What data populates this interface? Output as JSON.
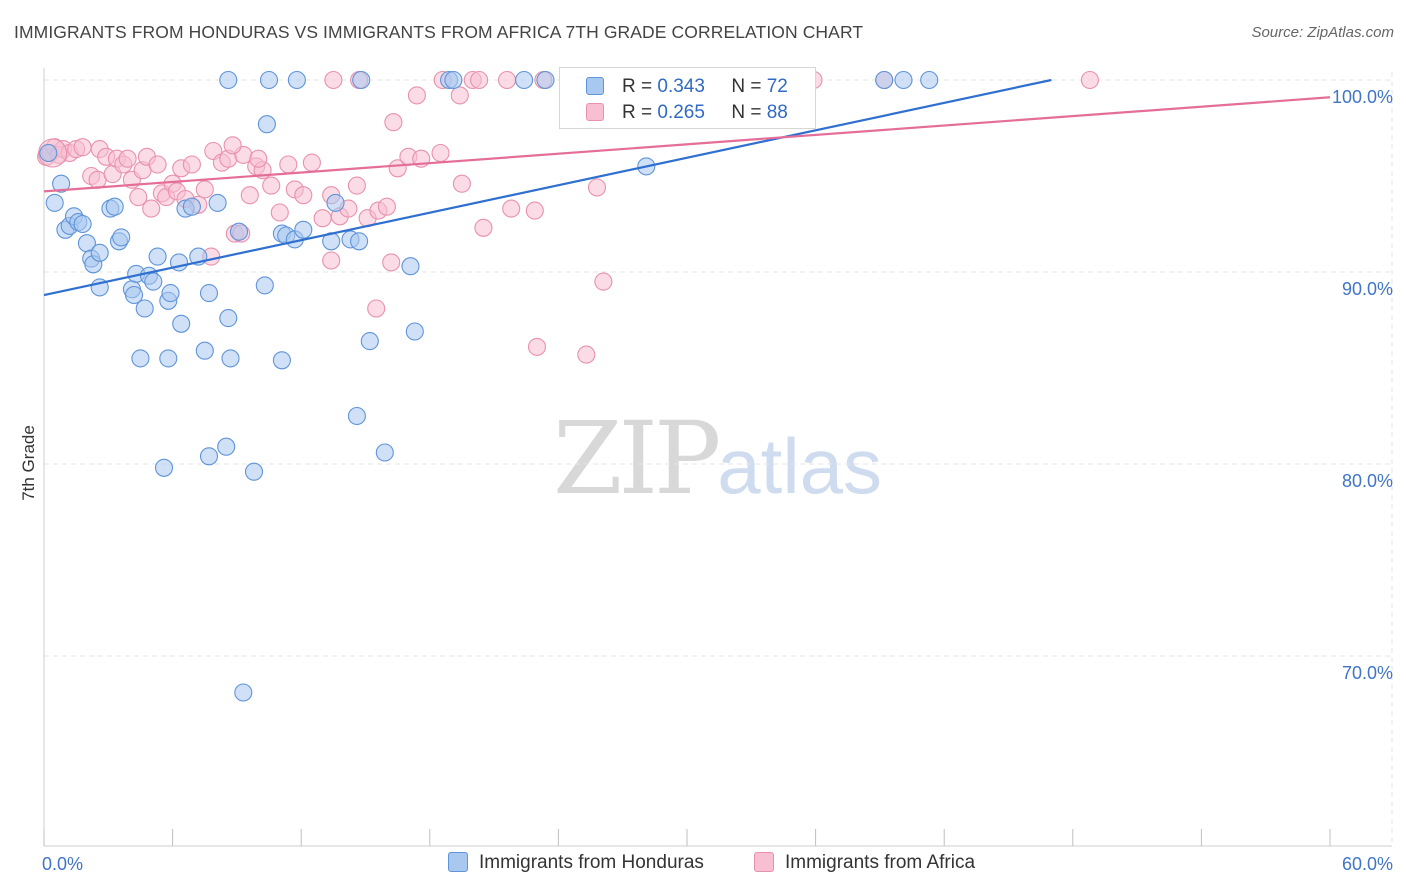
{
  "title": "IMMIGRANTS FROM HONDURAS VS IMMIGRANTS FROM AFRICA 7TH GRADE CORRELATION CHART",
  "source": "Source: ZipAtlas.com",
  "watermark": {
    "zip": "ZIP",
    "atlas": "atlas"
  },
  "colors": {
    "honduras_fill": "#a9c8f0",
    "honduras_stroke": "#5f94d8",
    "honduras_line": "#2f6fd0",
    "africa_fill": "#f7bfd1",
    "africa_stroke": "#e891ad",
    "africa_line": "#e46e97",
    "tick_label": "#3f74c8",
    "grid": "#e6e6e6"
  },
  "legend": {
    "honduras": {
      "r_label": "R =",
      "r_value": "0.343",
      "n_label": "N =",
      "n_value": "72",
      "name": "Immigrants from Honduras"
    },
    "africa": {
      "r_label": "R =",
      "r_value": "0.265",
      "n_label": "N =",
      "n_value": "88",
      "name": "Immigrants from Africa"
    }
  },
  "chart_data": {
    "type": "scatter",
    "title": "IMMIGRANTS FROM HONDURAS VS IMMIGRANTS FROM AFRICA 7TH GRADE CORRELATION CHART",
    "xlabel": "",
    "ylabel": "7th Grade",
    "xlim": [
      0,
      60
    ],
    "ylim": [
      60,
      100.6
    ],
    "x_tick_labels": [
      "0.0%",
      "60.0%"
    ],
    "y_ticks": [
      {
        "value": 100,
        "label": "100.0%"
      },
      {
        "value": 90,
        "label": "90.0%"
      },
      {
        "value": 80,
        "label": "80.0%"
      },
      {
        "value": 70,
        "label": "70.0%"
      }
    ],
    "series": [
      {
        "name": "Immigrants from Honduras",
        "trend": {
          "x0": 0,
          "y0": 88.8,
          "x1": 47,
          "y1": 100
        },
        "points": [
          [
            0.2,
            96.2
          ],
          [
            0.5,
            93.6
          ],
          [
            0.8,
            94.6
          ],
          [
            1.0,
            92.2
          ],
          [
            1.2,
            92.4
          ],
          [
            1.4,
            92.9
          ],
          [
            1.6,
            92.6
          ],
          [
            1.8,
            92.5
          ],
          [
            2.0,
            91.5
          ],
          [
            2.2,
            90.7
          ],
          [
            2.3,
            90.4
          ],
          [
            2.6,
            91.0
          ],
          [
            2.6,
            89.2
          ],
          [
            3.1,
            93.3
          ],
          [
            3.3,
            93.4
          ],
          [
            3.5,
            91.6
          ],
          [
            3.6,
            91.8
          ],
          [
            4.1,
            89.1
          ],
          [
            4.2,
            88.8
          ],
          [
            4.3,
            89.9
          ],
          [
            4.7,
            88.1
          ],
          [
            4.9,
            89.8
          ],
          [
            5.1,
            89.5
          ],
          [
            5.3,
            90.8
          ],
          [
            5.8,
            88.5
          ],
          [
            5.9,
            88.9
          ],
          [
            6.3,
            90.5
          ],
          [
            6.4,
            87.3
          ],
          [
            6.6,
            93.3
          ],
          [
            6.9,
            93.4
          ],
          [
            7.2,
            90.8
          ],
          [
            7.7,
            88.9
          ],
          [
            8.1,
            93.6
          ],
          [
            8.6,
            87.6
          ],
          [
            9.1,
            92.1
          ],
          [
            10.3,
            89.3
          ],
          [
            10.4,
            97.7
          ],
          [
            11.1,
            92.0
          ],
          [
            11.3,
            91.9
          ],
          [
            11.7,
            91.7
          ],
          [
            12.1,
            92.2
          ],
          [
            13.4,
            91.6
          ],
          [
            13.6,
            93.6
          ],
          [
            14.3,
            91.7
          ],
          [
            14.7,
            91.6
          ],
          [
            17.1,
            90.3
          ],
          [
            17.3,
            86.9
          ],
          [
            15.2,
            86.4
          ],
          [
            4.5,
            85.5
          ],
          [
            5.8,
            85.5
          ],
          [
            7.5,
            85.9
          ],
          [
            8.7,
            85.5
          ],
          [
            11.1,
            85.4
          ],
          [
            14.6,
            82.5
          ],
          [
            15.9,
            80.6
          ],
          [
            5.6,
            79.8
          ],
          [
            7.7,
            80.4
          ],
          [
            8.5,
            80.9
          ],
          [
            9.8,
            79.6
          ],
          [
            9.3,
            68.1
          ],
          [
            8.6,
            100
          ],
          [
            10.5,
            100
          ],
          [
            11.8,
            100
          ],
          [
            14.8,
            100
          ],
          [
            18.9,
            100
          ],
          [
            23.4,
            100
          ],
          [
            28.1,
            95.5
          ],
          [
            39.2,
            100
          ],
          [
            40.1,
            100
          ],
          [
            41.3,
            100
          ],
          [
            19.1,
            100
          ],
          [
            22.4,
            100
          ]
        ]
      },
      {
        "name": "Immigrants from Africa",
        "trend": {
          "x0": 0,
          "y0": 94.2,
          "x1": 60,
          "y1": 99.1
        },
        "points": [
          [
            0.1,
            96.0
          ],
          [
            0.3,
            96.2
          ],
          [
            0.5,
            96.5
          ],
          [
            0.7,
            96.1
          ],
          [
            0.9,
            96.4
          ],
          [
            1.2,
            96.2
          ],
          [
            1.5,
            96.4
          ],
          [
            1.8,
            96.5
          ],
          [
            2.2,
            95.0
          ],
          [
            2.5,
            94.8
          ],
          [
            2.6,
            96.4
          ],
          [
            2.9,
            96.0
          ],
          [
            3.2,
            95.1
          ],
          [
            3.4,
            95.9
          ],
          [
            3.7,
            95.6
          ],
          [
            3.9,
            95.9
          ],
          [
            4.1,
            94.8
          ],
          [
            4.4,
            93.9
          ],
          [
            4.6,
            95.3
          ],
          [
            4.8,
            96.0
          ],
          [
            5.0,
            93.3
          ],
          [
            5.3,
            95.6
          ],
          [
            5.5,
            94.1
          ],
          [
            5.7,
            93.9
          ],
          [
            6.0,
            94.6
          ],
          [
            6.2,
            94.2
          ],
          [
            6.4,
            95.4
          ],
          [
            6.6,
            93.8
          ],
          [
            6.9,
            95.6
          ],
          [
            7.2,
            93.5
          ],
          [
            7.5,
            94.3
          ],
          [
            7.9,
            96.3
          ],
          [
            8.3,
            95.7
          ],
          [
            8.6,
            95.9
          ],
          [
            8.9,
            92.0
          ],
          [
            9.3,
            96.1
          ],
          [
            9.6,
            94.0
          ],
          [
            9.9,
            95.5
          ],
          [
            10.2,
            95.3
          ],
          [
            10.6,
            94.5
          ],
          [
            11.0,
            93.1
          ],
          [
            11.4,
            95.6
          ],
          [
            11.7,
            94.3
          ],
          [
            12.1,
            94.0
          ],
          [
            12.5,
            95.7
          ],
          [
            13.0,
            92.8
          ],
          [
            13.4,
            94.0
          ],
          [
            13.8,
            92.9
          ],
          [
            14.2,
            93.3
          ],
          [
            14.6,
            94.5
          ],
          [
            15.1,
            92.8
          ],
          [
            15.6,
            93.2
          ],
          [
            16.0,
            93.4
          ],
          [
            16.5,
            95.4
          ],
          [
            17.0,
            96.0
          ],
          [
            17.6,
            95.9
          ],
          [
            18.5,
            96.2
          ],
          [
            19.5,
            94.6
          ],
          [
            20.5,
            92.3
          ],
          [
            21.8,
            93.3
          ],
          [
            22.9,
            93.2
          ],
          [
            25.8,
            94.4
          ],
          [
            7.8,
            90.8
          ],
          [
            9.2,
            92.0
          ],
          [
            13.4,
            90.6
          ],
          [
            16.2,
            90.5
          ],
          [
            15.5,
            88.1
          ],
          [
            26.1,
            89.5
          ],
          [
            23.0,
            86.1
          ],
          [
            25.3,
            85.7
          ],
          [
            16.3,
            97.8
          ],
          [
            17.4,
            99.2
          ],
          [
            19.4,
            99.2
          ],
          [
            8.8,
            96.6
          ],
          [
            10.0,
            95.9
          ],
          [
            13.5,
            100
          ],
          [
            14.7,
            100
          ],
          [
            18.6,
            100
          ],
          [
            20.0,
            100
          ],
          [
            20.3,
            100
          ],
          [
            21.6,
            100
          ],
          [
            23.3,
            100
          ],
          [
            26.0,
            100
          ],
          [
            28.4,
            100
          ],
          [
            33.1,
            100
          ],
          [
            35.9,
            100
          ],
          [
            39.2,
            100
          ],
          [
            48.8,
            100
          ]
        ]
      }
    ]
  }
}
